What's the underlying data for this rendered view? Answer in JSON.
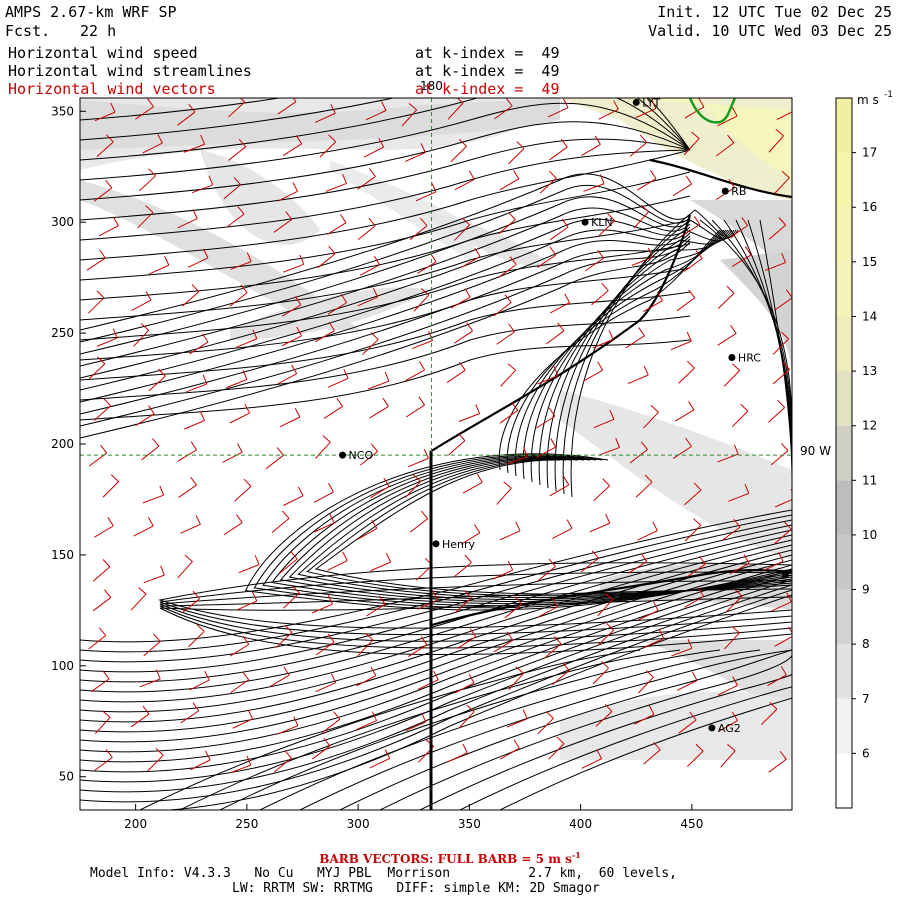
{
  "header": {
    "model": "AMPS 2.67-km WRF SP",
    "fcst_label": "Fcst.",
    "fcst_value": "22 h",
    "init": "Init. 12 UTC Tue 02 Dec 25",
    "valid": "Valid. 10 UTC Wed 03 Dec 25"
  },
  "fields": [
    {
      "name": "Horizontal wind speed",
      "level": "at k-index =  49",
      "color": "#000000"
    },
    {
      "name": "Horizontal wind streamlines",
      "level": "at k-index =  49",
      "color": "#000000"
    },
    {
      "name": "Horizontal wind vectors",
      "level": "at k-index =  49",
      "color": "#cc0000"
    }
  ],
  "colors": {
    "barb": "#cc0000",
    "frame": "#000000",
    "grid": "#2e8b2e",
    "coast": "#1a9a1a"
  },
  "chart_data": {
    "type": "heatmap",
    "title": "Horizontal wind speed / streamlines / vectors",
    "x_ticks": [
      200,
      250,
      300,
      350,
      400,
      450
    ],
    "y_ticks": [
      50,
      100,
      150,
      200,
      250,
      300,
      350
    ],
    "xlim": [
      175,
      495
    ],
    "ylim": [
      35,
      356
    ],
    "meridian_label": "180",
    "latitude_label": "90 W",
    "meridian_x": 333,
    "latitude_y": 195,
    "section_line": [
      [
        333,
        195
      ],
      [
        333,
        35
      ]
    ],
    "stations": [
      {
        "name": "LYT",
        "x": 425,
        "y": 354
      },
      {
        "name": "RB",
        "x": 465,
        "y": 314
      },
      {
        "name": "KLN",
        "x": 402,
        "y": 300
      },
      {
        "name": "HRC",
        "x": 468,
        "y": 239
      },
      {
        "name": "NCO",
        "x": 293,
        "y": 195
      },
      {
        "name": "Henry",
        "x": 335,
        "y": 155
      },
      {
        "name": "AG2",
        "x": 459,
        "y": 72
      },
      {
        "name": "",
        "x": 492,
        "y": 141
      }
    ],
    "colorbar": {
      "unit": "m s",
      "unit_sup": "-1",
      "ticks": [
        6,
        7,
        8,
        9,
        10,
        11,
        12,
        13,
        14,
        15,
        16,
        17
      ],
      "min": 5,
      "max": 18,
      "colors": [
        "#ffffff",
        "#f1f1f1",
        "#e2e2e2",
        "#d3d3d3",
        "#c8c8c8",
        "#bdbdbd",
        "#cfcfc4",
        "#e2e2c2",
        "#eeeebd",
        "#f4f4b9",
        "#f6f6b3",
        "#f5f5aa",
        "#f0f0a0"
      ]
    }
  },
  "footer": {
    "barb": "BARB VECTORS:  FULL BARB = 5 m s",
    "barb_sup": "-1",
    "model_info": "Model Info: V4.3.3   No Cu   MYJ PBL  Morrison          2.7 km,  60 levels,",
    "physics": "LW: RRTM SW: RRTMG   DIFF: simple KM: 2D Smagor"
  }
}
